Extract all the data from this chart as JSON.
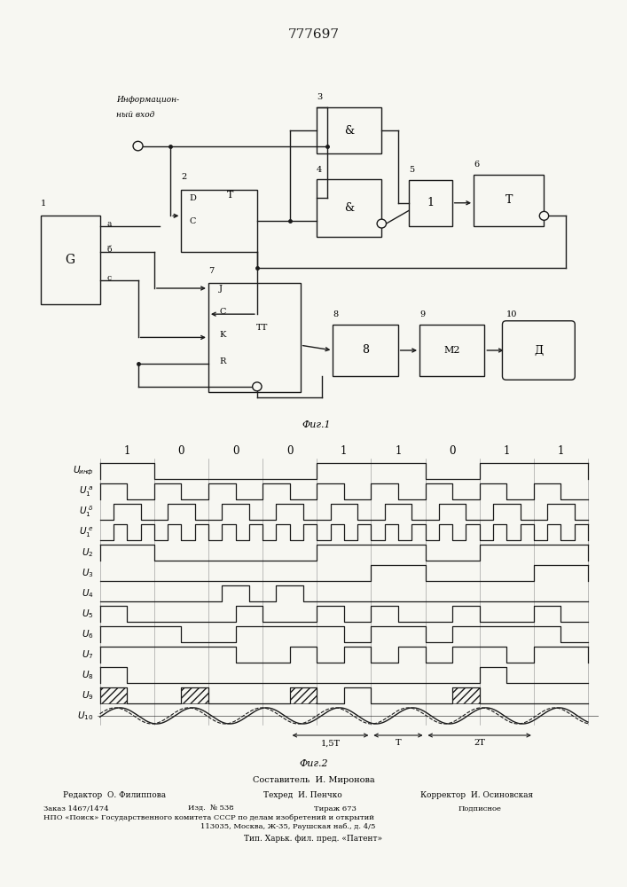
{
  "title": "777697",
  "fig1_caption": "Фиг.1",
  "fig2_caption": "Фиг.2",
  "bits": [
    1,
    0,
    0,
    0,
    1,
    1,
    0,
    1,
    1
  ],
  "bg_color": "#f7f7f2",
  "lc": "#1a1a1a",
  "info_input1": "Информацион-",
  "info_input2": "ный вход",
  "block10_label": "Д",
  "footer_compiler": "Составитель  И. Миронова",
  "footer_editor": "Редактор  О. Филиппова",
  "footer_tech": "Техред  И. Пенчко",
  "footer_corr": "Корректор  И. Осиновская",
  "footer_order": "Заказ 1467/1474",
  "footer_issue": "Изд.  № 538",
  "footer_print": "Тираж 673",
  "footer_type": "Подписное",
  "footer_org": "НПО «Поиск» Государственного комитета СССР по делам изобретений и открытий",
  "footer_addr": "113035, Москва, Ж-35, Раушская наб., д. 4/5",
  "footer_printouse": "Тип. Харьк. фил. пред. «Патент»"
}
